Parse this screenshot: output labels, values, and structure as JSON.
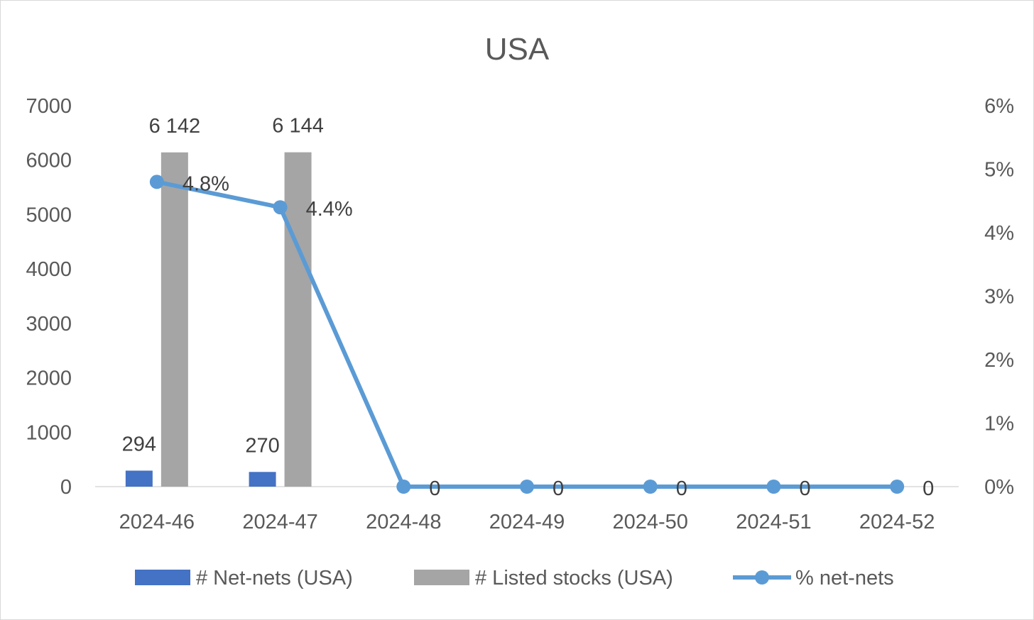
{
  "chart_data": {
    "type": "bar",
    "title": "USA",
    "categories": [
      "2024-46",
      "2024-47",
      "2024-48",
      "2024-49",
      "2024-50",
      "2024-51",
      "2024-52"
    ],
    "series": [
      {
        "name": "# Net-nets (USA)",
        "type": "bar",
        "axis": "left",
        "color": "#4472c4",
        "values": [
          294,
          270,
          null,
          null,
          null,
          null,
          null
        ],
        "labels": [
          "294",
          "270",
          "",
          "",
          "",
          "",
          ""
        ]
      },
      {
        "name": "# Listed stocks (USA)",
        "type": "bar",
        "axis": "left",
        "color": "#a5a5a5",
        "values": [
          6142,
          6144,
          null,
          null,
          null,
          null,
          null
        ],
        "labels": [
          "6 142",
          "6 144",
          "",
          "",
          "",
          "",
          ""
        ]
      },
      {
        "name": "% net-nets",
        "type": "line",
        "axis": "right",
        "color": "#5b9bd5",
        "values": [
          4.8,
          4.4,
          0,
          0,
          0,
          0,
          0
        ],
        "labels": [
          "4.8%",
          "4.4%",
          "0",
          "0",
          "0",
          "0",
          "0"
        ]
      }
    ],
    "y_left": {
      "ylim": [
        0,
        7000
      ],
      "ticks": [
        "0",
        "1000",
        "2000",
        "3000",
        "4000",
        "5000",
        "6000",
        "7000"
      ]
    },
    "y_right": {
      "ylim": [
        0,
        6
      ],
      "ticks": [
        "0%",
        "1%",
        "2%",
        "3%",
        "4%",
        "5%",
        "6%"
      ]
    },
    "grid": false,
    "legend": "bottom"
  }
}
